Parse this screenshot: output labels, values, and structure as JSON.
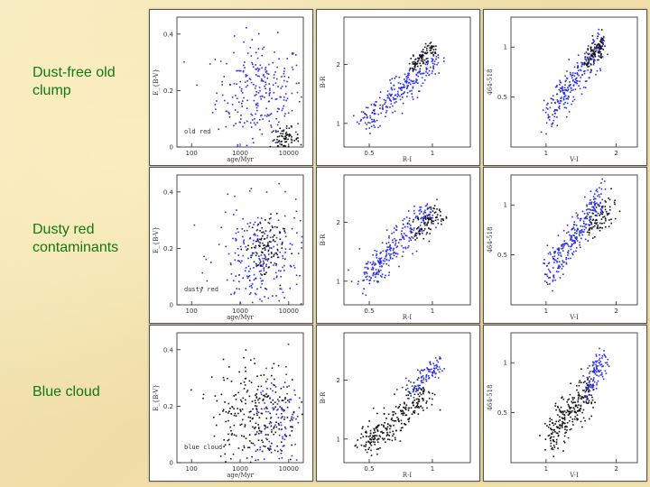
{
  "row_labels": [
    "Dust-free old clump",
    "Dusty red contaminants",
    "Blue cloud"
  ],
  "colors": {
    "blue": "#2a2dea",
    "black": "#111111",
    "label_green": "#0f7a0f",
    "background": "#f3e6b4"
  },
  "chart_data": [
    {
      "type": "scatter",
      "row": 0,
      "col": 0,
      "xlabel": "age/Myr",
      "ylabel": "E_{B-V}",
      "xscale": "log",
      "xlim": [
        50,
        20000
      ],
      "ylim": [
        0,
        0.46
      ],
      "xticks": [
        100,
        1000,
        10000
      ],
      "xticklabels": [
        "100",
        "1000",
        "10000"
      ],
      "yticks": [
        0,
        0.2,
        0.4
      ],
      "yticklabels": [
        "0",
        "0.2",
        "0.4"
      ],
      "annotation": "old red",
      "series": [
        {
          "color": "blue",
          "n": 260,
          "x_center": 2500,
          "x_spread": 0.45,
          "y_center": 0.2,
          "y_spread": 0.09
        },
        {
          "color": "black",
          "n": 70,
          "x_center": 8000,
          "x_spread": 0.15,
          "y_center": 0.03,
          "y_spread": 0.02
        }
      ]
    },
    {
      "type": "scatter",
      "row": 0,
      "col": 1,
      "xlabel": "R-I",
      "ylabel": "B-R",
      "xlim": [
        0.3,
        1.3
      ],
      "ylim": [
        0.6,
        2.8
      ],
      "xticks": [
        0.5,
        1
      ],
      "xticklabels": [
        "0.5",
        "1"
      ],
      "yticks": [
        1,
        2
      ],
      "yticklabels": [
        "1",
        "2"
      ],
      "series": [
        {
          "color": "blue",
          "n": 260,
          "x_from": 0.45,
          "x_to": 1.0,
          "y_from": 1.0,
          "y_to": 2.1,
          "scatter": 0.12
        },
        {
          "color": "black",
          "n": 90,
          "x_from": 0.82,
          "x_to": 1.0,
          "y_from": 1.95,
          "y_to": 2.3,
          "scatter": 0.06
        }
      ]
    },
    {
      "type": "scatter",
      "row": 0,
      "col": 2,
      "xlabel": "V-I",
      "ylabel": "464-518",
      "xlim": [
        0.5,
        2.3
      ],
      "ylim": [
        0,
        1.3
      ],
      "xticks": [
        1,
        2
      ],
      "xticklabels": [
        "1",
        "2"
      ],
      "yticks": [
        0.5,
        1
      ],
      "yticklabels": [
        "0.5",
        "1"
      ],
      "series": [
        {
          "color": "blue",
          "n": 260,
          "x_from": 1.0,
          "x_to": 1.8,
          "y_from": 0.3,
          "y_to": 1.05,
          "scatter": 0.1
        },
        {
          "color": "black",
          "n": 90,
          "x_from": 1.55,
          "x_to": 1.8,
          "y_from": 0.85,
          "y_to": 1.05,
          "scatter": 0.05
        }
      ]
    },
    {
      "type": "scatter",
      "row": 1,
      "col": 0,
      "xlabel": "age/Myr",
      "ylabel": "E_{B-V}",
      "xscale": "log",
      "xlim": [
        50,
        20000
      ],
      "ylim": [
        0,
        0.46
      ],
      "xticks": [
        100,
        1000,
        10000
      ],
      "xticklabels": [
        "100",
        "1000",
        "10000"
      ],
      "yticks": [
        0,
        0.2,
        0.4
      ],
      "yticklabels": [
        "0",
        "0.2",
        "0.4"
      ],
      "annotation": "dusty red",
      "series": [
        {
          "color": "blue",
          "n": 240,
          "x_center": 2500,
          "x_spread": 0.45,
          "y_center": 0.17,
          "y_spread": 0.09
        },
        {
          "color": "black",
          "n": 100,
          "x_center": 3000,
          "x_spread": 0.2,
          "y_center": 0.2,
          "y_spread": 0.06
        }
      ]
    },
    {
      "type": "scatter",
      "row": 1,
      "col": 1,
      "xlabel": "R-I",
      "ylabel": "B-R",
      "xlim": [
        0.3,
        1.3
      ],
      "ylim": [
        0.6,
        2.8
      ],
      "xticks": [
        0.5,
        1
      ],
      "xticklabels": [
        "0.5",
        "1"
      ],
      "yticks": [
        1,
        2
      ],
      "yticklabels": [
        "1",
        "2"
      ],
      "series": [
        {
          "color": "blue",
          "n": 280,
          "x_from": 0.45,
          "x_to": 1.0,
          "y_from": 1.0,
          "y_to": 2.3,
          "scatter": 0.12
        },
        {
          "color": "black",
          "n": 80,
          "x_from": 0.85,
          "x_to": 1.05,
          "y_from": 1.8,
          "y_to": 2.2,
          "scatter": 0.1
        }
      ]
    },
    {
      "type": "scatter",
      "row": 1,
      "col": 2,
      "xlabel": "V-I",
      "ylabel": "464-518",
      "xlim": [
        0.5,
        2.3
      ],
      "ylim": [
        0,
        1.3
      ],
      "xticks": [
        1,
        2
      ],
      "xticklabels": [
        "1",
        "2"
      ],
      "yticks": [
        0.5,
        1
      ],
      "yticklabels": [
        "0.5",
        "1"
      ],
      "series": [
        {
          "color": "blue",
          "n": 280,
          "x_from": 1.0,
          "x_to": 1.8,
          "y_from": 0.3,
          "y_to": 1.1,
          "scatter": 0.1
        },
        {
          "color": "black",
          "n": 80,
          "x_from": 1.55,
          "x_to": 1.95,
          "y_from": 0.75,
          "y_to": 1.0,
          "scatter": 0.08
        }
      ]
    },
    {
      "type": "scatter",
      "row": 2,
      "col": 0,
      "xlabel": "age/Myr",
      "ylabel": "E_{B-V}",
      "xscale": "log",
      "xlim": [
        50,
        20000
      ],
      "ylim": [
        0,
        0.46
      ],
      "xticks": [
        100,
        1000,
        10000
      ],
      "xticklabels": [
        "100",
        "1000",
        "10000"
      ],
      "yticks": [
        0,
        0.2,
        0.4
      ],
      "yticklabels": [
        "0",
        "0.2",
        "0.4"
      ],
      "annotation": "blue cloud",
      "series": [
        {
          "color": "black",
          "n": 260,
          "x_center": 2000,
          "x_spread": 0.45,
          "y_center": 0.18,
          "y_spread": 0.09
        },
        {
          "color": "blue",
          "n": 110,
          "x_center": 6000,
          "x_spread": 0.25,
          "y_center": 0.15,
          "y_spread": 0.1
        }
      ]
    },
    {
      "type": "scatter",
      "row": 2,
      "col": 1,
      "xlabel": "R-I",
      "ylabel": "B-R",
      "xlim": [
        0.3,
        1.3
      ],
      "ylim": [
        0.6,
        2.8
      ],
      "xticks": [
        0.5,
        1
      ],
      "xticklabels": [
        "0.5",
        "1"
      ],
      "yticks": [
        1,
        2
      ],
      "yticklabels": [
        "1",
        "2"
      ],
      "series": [
        {
          "color": "black",
          "n": 260,
          "x_from": 0.45,
          "x_to": 0.95,
          "y_from": 0.9,
          "y_to": 1.8,
          "scatter": 0.12
        },
        {
          "color": "blue",
          "n": 100,
          "x_from": 0.8,
          "x_to": 1.05,
          "y_from": 1.8,
          "y_to": 2.3,
          "scatter": 0.08
        }
      ]
    },
    {
      "type": "scatter",
      "row": 2,
      "col": 2,
      "xlabel": "V-I",
      "ylabel": "464-518",
      "xlim": [
        0.5,
        2.3
      ],
      "ylim": [
        0,
        1.3
      ],
      "xticks": [
        1,
        2
      ],
      "xticklabels": [
        "1",
        "2"
      ],
      "yticks": [
        0.5,
        1
      ],
      "yticklabels": [
        "0.5",
        "1"
      ],
      "series": [
        {
          "color": "black",
          "n": 260,
          "x_from": 1.0,
          "x_to": 1.65,
          "y_from": 0.25,
          "y_to": 0.75,
          "scatter": 0.1
        },
        {
          "color": "blue",
          "n": 100,
          "x_from": 1.55,
          "x_to": 1.85,
          "y_from": 0.75,
          "y_to": 1.05,
          "scatter": 0.08
        }
      ]
    }
  ]
}
